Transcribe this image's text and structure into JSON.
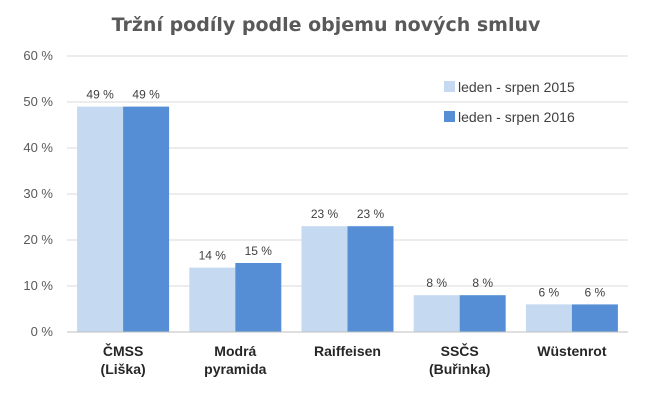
{
  "chart_data": {
    "type": "bar",
    "title": "Tržní podíly podle objemu nových smluv",
    "categories": [
      [
        "ČMSS",
        "(Liška)"
      ],
      [
        "Modrá",
        "pyramida"
      ],
      [
        "Raiffeisen"
      ],
      [
        "SSČS",
        "(Buřinka)"
      ],
      [
        "Wüstenrot"
      ]
    ],
    "series": [
      {
        "name": "leden - srpen 2015",
        "color": "#c5d9f1",
        "values": [
          49,
          14,
          23,
          8,
          6
        ],
        "labels": [
          "49 %",
          "14 %",
          "23 %",
          "8 %",
          "6 %"
        ]
      },
      {
        "name": "leden - srpen 2016",
        "color": "#558ed5",
        "values": [
          49,
          15,
          23,
          8,
          6
        ],
        "labels": [
          "49 %",
          "15 %",
          "23 %",
          "8 %",
          "6 %"
        ]
      }
    ],
    "yticks": [
      "0 %",
      "10 %",
      "20 %",
      "30 %",
      "40 %",
      "50 %",
      "60 %"
    ],
    "ylim": [
      0,
      60
    ],
    "grid": true,
    "legend": "top-right"
  }
}
